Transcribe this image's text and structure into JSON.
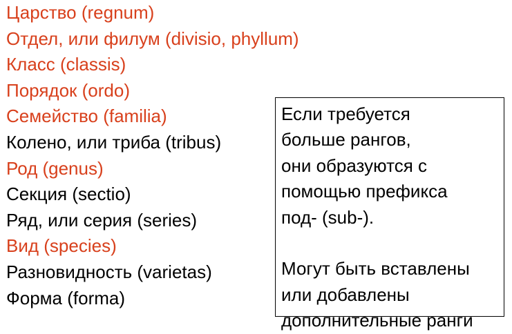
{
  "colors": {
    "highlight": "#d8401c",
    "normal": "#000000"
  },
  "ranks": [
    {
      "text": "Царство (regnum)",
      "highlight": true
    },
    {
      "text": "Отдел, или филум (divisio, phyllum)",
      "highlight": true
    },
    {
      "text": "Класс (classis)",
      "highlight": true
    },
    {
      "text": "Порядок (ordo)",
      "highlight": true
    },
    {
      "text": "Семейство (familia)",
      "highlight": true
    },
    {
      "text": "Колено, или триба (tribus)",
      "highlight": false
    },
    {
      "text": "Род (genus)",
      "highlight": true
    },
    {
      "text": "Секция (sectio)",
      "highlight": false
    },
    {
      "text": "Ряд, или серия (series)",
      "highlight": false
    },
    {
      "text": "Вид (species)",
      "highlight": true
    },
    {
      "text": "Разновидность (varietas)",
      "highlight": false
    },
    {
      "text": "Форма (forma)",
      "highlight": false
    }
  ],
  "note": {
    "lines1": [
      "Если требуется",
      "больше рангов,",
      "они образуются с",
      "помощью префикса",
      "под- (sub-)."
    ],
    "lines2": [
      "Могут быть вставлены",
      "или добавлены",
      "дополнительные ранги"
    ]
  }
}
